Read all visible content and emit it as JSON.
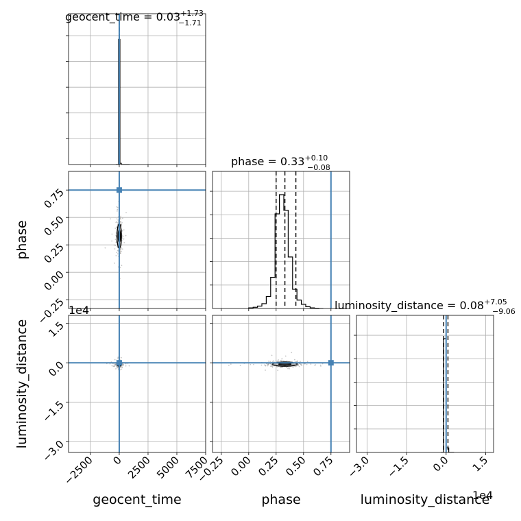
{
  "chart_data": {
    "type": "corner",
    "parameters": [
      "geocent_time",
      "phase",
      "luminosity_distance"
    ],
    "titles": [
      {
        "param": "geocent_time",
        "label": "geocent_time = 0.03",
        "sup": "+1.73",
        "sub": "−1.71",
        "median": 0.03,
        "plus": 1.73,
        "minus": 1.71
      },
      {
        "param": "phase",
        "label": "phase = 0.33",
        "sup": "+0.10",
        "sub": "−0.08",
        "median": 0.33,
        "plus": 0.1,
        "minus": 0.08
      },
      {
        "param": "luminosity_distance",
        "label": "luminosity_distance = 0.08",
        "sup": "+7.05",
        "sub": "−9.06",
        "median": 0.08,
        "plus": 7.05,
        "minus": 9.06
      }
    ],
    "axes": {
      "geocent_time": {
        "range": [
          -4400,
          7500
        ],
        "ticks": [
          -2500,
          0,
          2500,
          5000,
          7500
        ],
        "tick_labels": [
          "−2500",
          "0",
          "2500",
          "5000",
          "7500"
        ]
      },
      "phase": {
        "range": [
          -0.33,
          0.92
        ],
        "ticks": [
          -0.25,
          0.0,
          0.25,
          0.5,
          0.75
        ],
        "tick_labels": [
          "−0.25",
          "0.00",
          "0.25",
          "0.50",
          "0.75"
        ]
      },
      "luminosity_distance": {
        "range": [
          -3.4,
          1.8
        ],
        "ticks": [
          -3.0,
          -1.5,
          0.0,
          1.5
        ],
        "tick_labels": [
          "−3.0",
          "−1.5",
          "0.0",
          "1.5"
        ],
        "multiplier": "1e4"
      }
    },
    "truths": {
      "geocent_time": 0,
      "phase": 0.75,
      "luminosity_distance": 0
    },
    "quantile_lines": {
      "geocent_time": [
        -1.68,
        0.03,
        1.76
      ],
      "phase": [
        0.25,
        0.33,
        0.43
      ],
      "luminosity_distance": [
        -0.09,
        0.0,
        0.07
      ]
    },
    "histograms": {
      "geocent_time": {
        "bins": [
          -300,
          -180,
          -60,
          60,
          180,
          300,
          420,
          540,
          660,
          780,
          900
        ],
        "counts": [
          0,
          0,
          1.0,
          0.01,
          0,
          0,
          0,
          0,
          0,
          0
        ]
      },
      "phase": {
        "bins": [
          0.0,
          0.04,
          0.08,
          0.12,
          0.16,
          0.2,
          0.24,
          0.28,
          0.32,
          0.36,
          0.4,
          0.44,
          0.48,
          0.52,
          0.56,
          0.6,
          0.64,
          0.68
        ],
        "counts": [
          0.005,
          0.01,
          0.02,
          0.04,
          0.1,
          0.26,
          0.79,
          0.95,
          0.82,
          0.43,
          0.16,
          0.07,
          0.035,
          0.015,
          0.005,
          0.002,
          0.0
        ]
      },
      "luminosity_distance": {
        "bins": [
          -0.2,
          -0.1,
          0.0,
          0.1,
          0.2,
          0.3
        ],
        "counts": [
          0,
          1.0,
          0.04,
          0.0,
          0
        ]
      }
    },
    "grid": true,
    "samples_shown_as": "grey scatter with black density contours"
  }
}
